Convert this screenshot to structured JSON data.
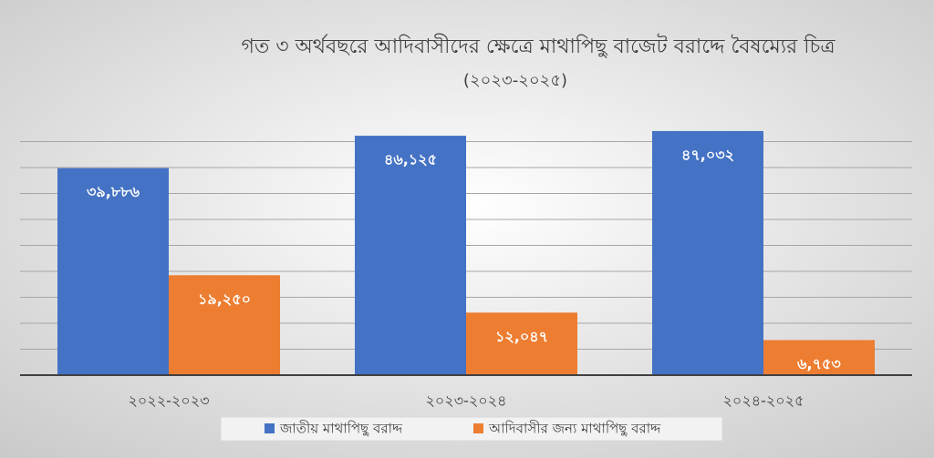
{
  "chart_data": {
    "type": "bar",
    "title": "গত ৩ অর্থবছরে আদিবাসীদের ক্ষেত্রে মাথাপিছু বাজেট বরাদ্দে বৈষম্যের চিত্র",
    "subtitle": "(২০২৩-২০২৫)",
    "categories": [
      "২০২২-২০২৩",
      "২০২৩-২০২৪",
      "২০২৪-২০২৫"
    ],
    "series": [
      {
        "name": "জাতীয় মাথাপিছু বরাদ্দ",
        "color": "#4472c4",
        "values": [
          39886,
          46125,
          47032
        ],
        "value_labels": [
          "৩৯,৮৮৬",
          "৪৬,১২৫",
          "৪৭,০৩২"
        ]
      },
      {
        "name": "আদিবাসীর জন্য মাথাপিছু বরাদ্দ",
        "color": "#ed7d31",
        "values": [
          19250,
          12047,
          6753
        ],
        "value_labels": [
          "১৯,২৫০",
          "১২,০৪৭",
          "৬,৭৫৩"
        ]
      }
    ],
    "ylim": [
      0,
      50000
    ],
    "yticks": [
      0,
      5000,
      10000,
      15000,
      20000,
      25000,
      30000,
      35000,
      40000,
      45000
    ],
    "grid": true,
    "legend": "bottom"
  }
}
